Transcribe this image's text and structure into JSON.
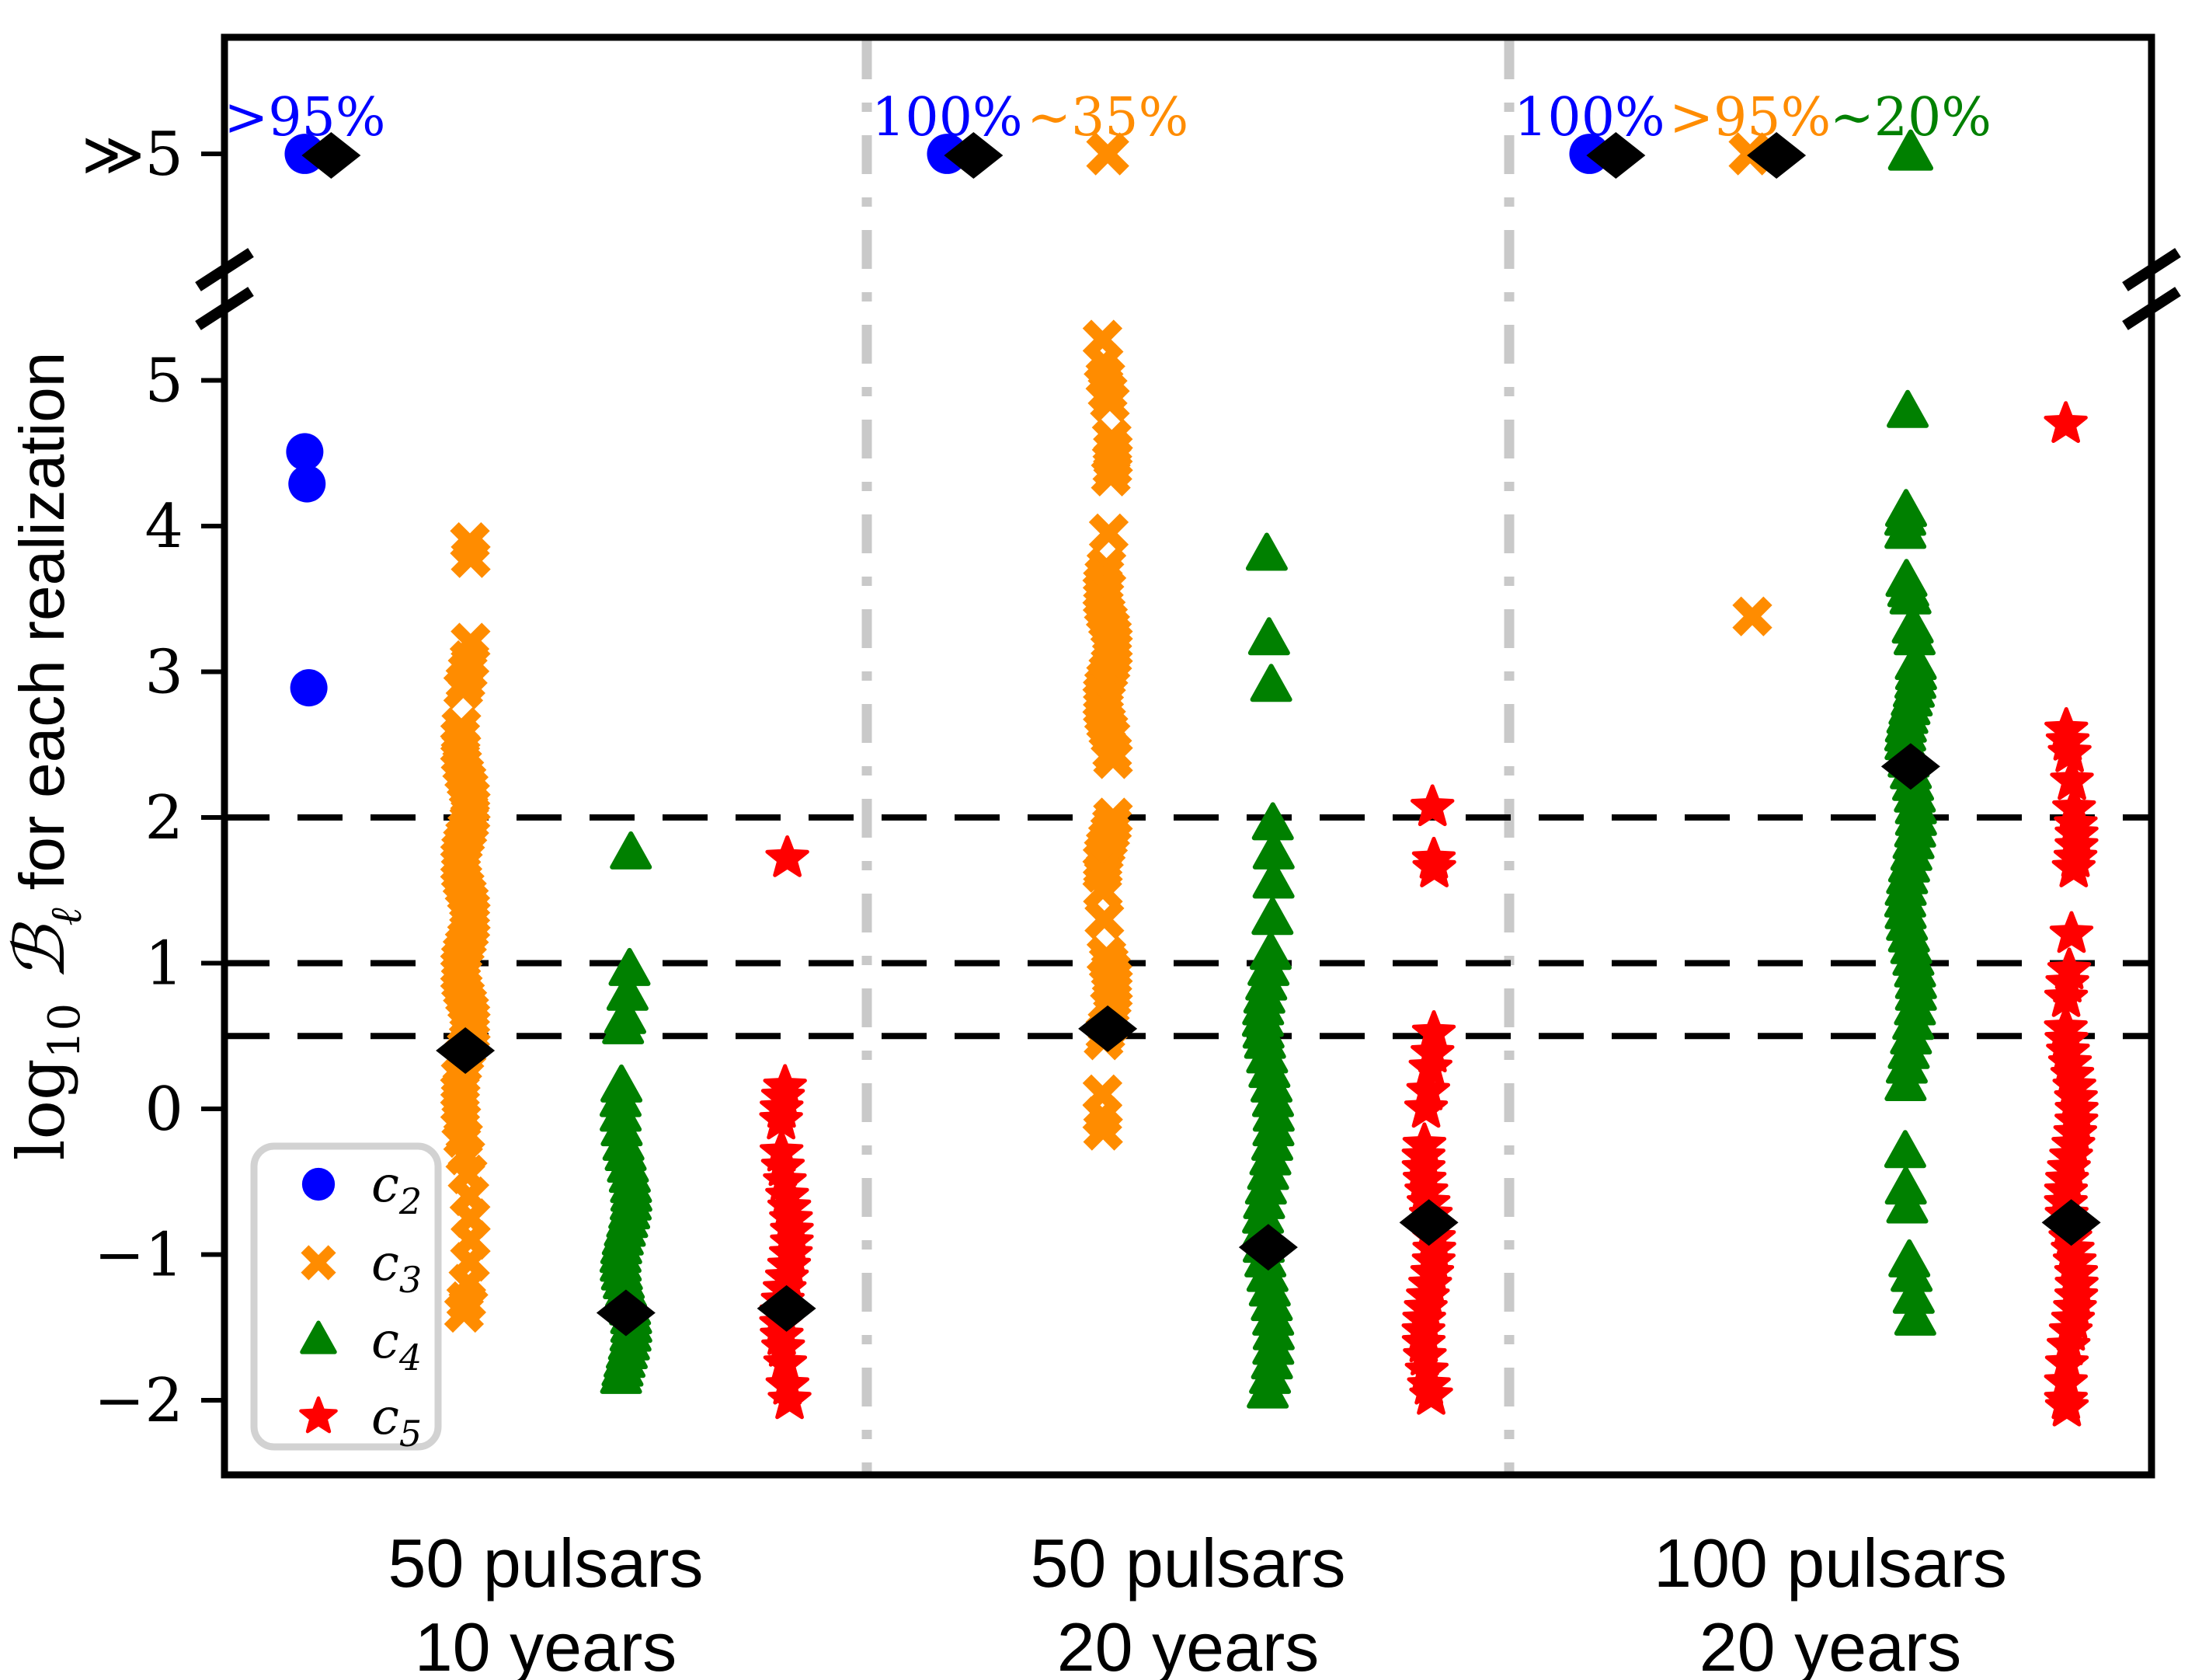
{
  "chart_data": {
    "type": "scatter",
    "title": "",
    "ylabel": {
      "prefix": "log",
      "sub1": "10",
      "symbol": "ℬ",
      "sub2": "ℓ",
      "rest": " for each realization"
    },
    "broken_axis_label": "≫5",
    "yticks": [
      5,
      4,
      3,
      2,
      1,
      0,
      -1,
      -2
    ],
    "ytick_labels": [
      "5",
      "4",
      "3",
      "2",
      "1",
      "0",
      "−1",
      "−2"
    ],
    "ylim_main": [
      -2.55,
      5.45
    ],
    "threshold_lines": [
      2,
      1,
      0.5
    ],
    "grid": "off",
    "legend_position": "lower-left",
    "legend": [
      {
        "id": "c2",
        "base": "c",
        "sub": "2",
        "marker": "circle",
        "color": "#0000ff"
      },
      {
        "id": "c3",
        "base": "c",
        "sub": "3",
        "marker": "x",
        "color": "#ff8c00"
      },
      {
        "id": "c4",
        "base": "c",
        "sub": "4",
        "marker": "triangle",
        "color": "#008000"
      },
      {
        "id": "c5",
        "base": "c",
        "sub": "5",
        "marker": "star",
        "color": "#ff0000"
      }
    ],
    "median_marker": {
      "shape": "diamond",
      "color": "#000000"
    },
    "separator_color": "#c9c9c9",
    "groups": [
      {
        "label": [
          "50 pulsars",
          "10 years"
        ],
        "columns": [
          {
            "series": "c2",
            "slot": 0,
            "at_break": true,
            "break_annotation": ">95%",
            "median": "break",
            "points": [
              4.51,
              4.29,
              2.89
            ]
          },
          {
            "series": "c3",
            "slot": 1,
            "at_break": false,
            "break_annotation": null,
            "median": 0.4,
            "points": [
              3.89,
              3.78,
              3.2,
              3.08,
              3.0,
              2.93,
              2.88,
              2.62,
              2.55,
              2.48,
              2.42,
              2.36,
              2.3,
              2.25,
              2.2,
              2.14,
              2.08,
              2.02,
              1.97,
              1.92,
              1.87,
              1.82,
              1.77,
              1.72,
              1.67,
              1.62,
              1.57,
              1.52,
              1.47,
              1.42,
              1.37,
              1.32,
              1.27,
              1.22,
              1.17,
              1.12,
              1.07,
              1.02,
              0.97,
              0.92,
              0.87,
              0.82,
              0.77,
              0.72,
              0.67,
              0.62,
              0.57,
              0.52,
              0.47,
              0.42,
              0.37,
              0.3,
              0.22,
              0.12,
              0.02,
              -0.08,
              -0.2,
              -0.32,
              -0.45,
              -0.6,
              -0.75,
              -0.9,
              -1.05,
              -1.2,
              -1.32,
              -1.4
            ]
          },
          {
            "series": "c4",
            "slot": 2,
            "at_break": false,
            "break_annotation": null,
            "median": -1.4,
            "points": [
              1.75,
              0.95,
              0.78,
              0.62,
              0.55,
              0.15,
              0.05,
              -0.05,
              -0.15,
              -0.25,
              -0.32,
              -0.4,
              -0.47,
              -0.54,
              -0.6,
              -0.66,
              -0.72,
              -0.78,
              -0.84,
              -0.9,
              -0.96,
              -1.02,
              -1.08,
              -1.14,
              -1.2,
              -1.26,
              -1.32,
              -1.38,
              -1.44,
              -1.5,
              -1.56,
              -1.62,
              -1.68,
              -1.74,
              -1.8,
              -1.85
            ]
          },
          {
            "series": "c5",
            "slot": 3,
            "at_break": false,
            "break_annotation": null,
            "median": -1.37,
            "points": [
              1.72,
              0.15,
              0.08,
              0.0,
              -0.08,
              -0.3,
              -0.4,
              -0.5,
              -0.6,
              -0.68,
              -0.76,
              -0.84,
              -0.92,
              -1.0,
              -1.08,
              -1.16,
              -1.24,
              -1.32,
              -1.4,
              -1.48,
              -1.56,
              -1.64,
              -1.75,
              -1.9,
              -2.0
            ]
          }
        ]
      },
      {
        "label": [
          "50 pulsars",
          "20 years"
        ],
        "columns": [
          {
            "series": "c2",
            "slot": 4,
            "at_break": true,
            "break_annotation": "100%",
            "median": "break",
            "points": []
          },
          {
            "series": "c3",
            "slot": 5,
            "at_break": true,
            "break_annotation": "∼35%",
            "median": 0.55,
            "points": [
              5.28,
              5.12,
              5.02,
              4.92,
              4.85,
              4.6,
              4.52,
              4.46,
              4.4,
              4.34,
              3.95,
              3.72,
              3.66,
              3.6,
              3.55,
              3.5,
              3.45,
              3.4,
              3.35,
              3.3,
              3.25,
              3.2,
              3.15,
              3.1,
              3.05,
              3.0,
              2.95,
              2.9,
              2.85,
              2.8,
              2.75,
              2.7,
              2.65,
              2.6,
              2.55,
              2.45,
              2.4,
              2.0,
              1.95,
              1.9,
              1.85,
              1.8,
              1.75,
              1.7,
              1.62,
              1.5,
              1.3,
              1.05,
              1.0,
              0.95,
              0.9,
              0.85,
              0.8,
              0.75,
              0.7,
              0.57,
              0.52,
              0.47,
              0.1,
              -0.05,
              -0.15
            ]
          },
          {
            "series": "c4",
            "slot": 6,
            "at_break": false,
            "break_annotation": null,
            "median": -0.95,
            "points": [
              3.8,
              3.22,
              2.9,
              1.95,
              1.75,
              1.55,
              1.3,
              1.06,
              0.95,
              0.85,
              0.76,
              0.68,
              0.6,
              0.52,
              0.45,
              0.35,
              0.25,
              0.15,
              0.05,
              -0.05,
              -0.15,
              -0.25,
              -0.35,
              -0.45,
              -0.55,
              -0.65,
              -0.75,
              -0.85,
              -0.95,
              -1.05,
              -1.15,
              -1.25,
              -1.35,
              -1.45,
              -1.55,
              -1.65,
              -1.75,
              -1.85,
              -1.95
            ]
          },
          {
            "series": "c5",
            "slot": 7,
            "at_break": false,
            "break_annotation": null,
            "median": -0.78,
            "points": [
              2.07,
              1.71,
              1.65,
              0.52,
              0.38,
              0.28,
              0.12,
              0.0,
              -0.25,
              -0.33,
              -0.41,
              -0.49,
              -0.57,
              -0.65,
              -0.73,
              -0.81,
              -0.89,
              -0.97,
              -1.05,
              -1.13,
              -1.21,
              -1.29,
              -1.37,
              -1.45,
              -1.53,
              -1.61,
              -1.7,
              -1.8,
              -1.9,
              -1.97
            ]
          }
        ]
      },
      {
        "label": [
          "100 pulsars",
          "20 years"
        ],
        "columns": [
          {
            "series": "c2",
            "slot": 8,
            "at_break": true,
            "break_annotation": "100%",
            "median": "break",
            "points": []
          },
          {
            "series": "c3",
            "slot": 9,
            "at_break": true,
            "break_annotation": ">95%",
            "median": "break",
            "points": [
              3.38
            ]
          },
          {
            "series": "c4",
            "slot": 10,
            "at_break": true,
            "break_annotation": "∼20%",
            "median": 2.35,
            "points": [
              4.78,
              4.1,
              4.04,
              3.95,
              3.62,
              3.55,
              3.5,
              3.3,
              3.22,
              3.05,
              2.98,
              2.92,
              2.86,
              2.8,
              2.74,
              2.68,
              2.62,
              2.56,
              2.5,
              2.44,
              2.38,
              2.3,
              2.22,
              2.14,
              2.06,
              1.98,
              1.9,
              1.82,
              1.74,
              1.66,
              1.58,
              1.5,
              1.42,
              1.34,
              1.26,
              1.18,
              1.1,
              1.02,
              0.94,
              0.86,
              0.78,
              0.68,
              0.58,
              0.48,
              0.38,
              0.28,
              0.16,
              -0.3,
              -0.55,
              -0.68,
              -1.05,
              -1.15,
              -1.3,
              -1.45
            ]
          },
          {
            "series": "c5",
            "slot": 11,
            "at_break": false,
            "break_annotation": null,
            "median": -0.78,
            "points": [
              4.7,
              2.6,
              2.52,
              2.44,
              2.25,
              2.06,
              1.95,
              1.88,
              1.8,
              1.72,
              1.65,
              1.2,
              0.95,
              0.86,
              0.76,
              0.55,
              0.47,
              0.39,
              0.31,
              0.23,
              0.15,
              0.07,
              -0.01,
              -0.09,
              -0.17,
              -0.25,
              -0.33,
              -0.41,
              -0.49,
              -0.57,
              -0.65,
              -0.73,
              -0.81,
              -0.89,
              -0.97,
              -1.05,
              -1.13,
              -1.21,
              -1.29,
              -1.37,
              -1.45,
              -1.53,
              -1.63,
              -1.75,
              -1.88,
              -2.0,
              -2.05
            ]
          }
        ]
      }
    ]
  }
}
